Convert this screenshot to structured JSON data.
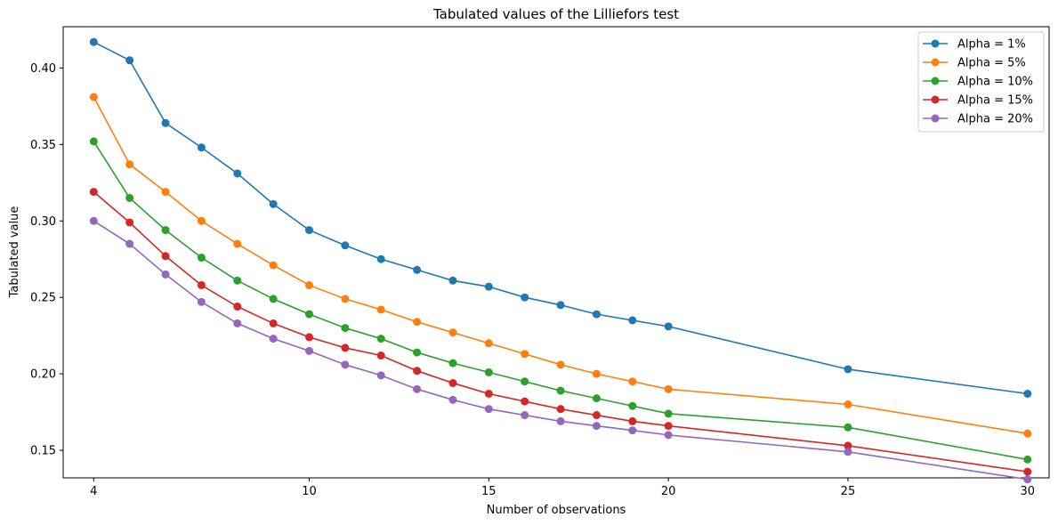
{
  "chart_data": {
    "type": "line",
    "title": "Tabulated values of the Lilliefors test",
    "xlabel": "Number of observations",
    "ylabel": "Tabulated value",
    "xlim": [
      3.15,
      30.6
    ],
    "ylim": [
      0.132,
      0.427
    ],
    "xticks": [
      4,
      10,
      15,
      20,
      25,
      30
    ],
    "yticks": [
      0.15,
      0.2,
      0.25,
      0.3,
      0.35,
      0.4
    ],
    "ytick_labels": [
      "0.15",
      "0.20",
      "0.25",
      "0.30",
      "0.35",
      "0.40"
    ],
    "grid": false,
    "legend_position": "top-right",
    "x": [
      4,
      5,
      6,
      7,
      8,
      9,
      10,
      11,
      12,
      13,
      14,
      15,
      16,
      17,
      18,
      19,
      20,
      25,
      30
    ],
    "series": [
      {
        "name": "Alpha = 1%",
        "color": "#1f77b4",
        "values": [
          0.417,
          0.405,
          0.364,
          0.348,
          0.331,
          0.311,
          0.294,
          0.284,
          0.275,
          0.268,
          0.261,
          0.257,
          0.25,
          0.245,
          0.239,
          0.235,
          0.231,
          0.203,
          0.187
        ]
      },
      {
        "name": "Alpha = 5%",
        "color": "#ff7f0e",
        "values": [
          0.381,
          0.337,
          0.319,
          0.3,
          0.285,
          0.271,
          0.258,
          0.249,
          0.242,
          0.234,
          0.227,
          0.22,
          0.213,
          0.206,
          0.2,
          0.195,
          0.19,
          0.18,
          0.161
        ]
      },
      {
        "name": "Alpha = 10%",
        "color": "#2ca02c",
        "values": [
          0.352,
          0.315,
          0.294,
          0.276,
          0.261,
          0.249,
          0.239,
          0.23,
          0.223,
          0.214,
          0.207,
          0.201,
          0.195,
          0.189,
          0.184,
          0.179,
          0.174,
          0.165,
          0.144
        ]
      },
      {
        "name": "Alpha = 15%",
        "color": "#d62728",
        "values": [
          0.319,
          0.299,
          0.277,
          0.258,
          0.244,
          0.233,
          0.224,
          0.217,
          0.212,
          0.202,
          0.194,
          0.187,
          0.182,
          0.177,
          0.173,
          0.169,
          0.166,
          0.153,
          0.136
        ]
      },
      {
        "name": "Alpha = 20%",
        "color": "#9467bd",
        "values": [
          0.3,
          0.285,
          0.265,
          0.247,
          0.233,
          0.223,
          0.215,
          0.206,
          0.199,
          0.19,
          0.183,
          0.177,
          0.173,
          0.169,
          0.166,
          0.163,
          0.16,
          0.149,
          0.131
        ]
      }
    ]
  }
}
